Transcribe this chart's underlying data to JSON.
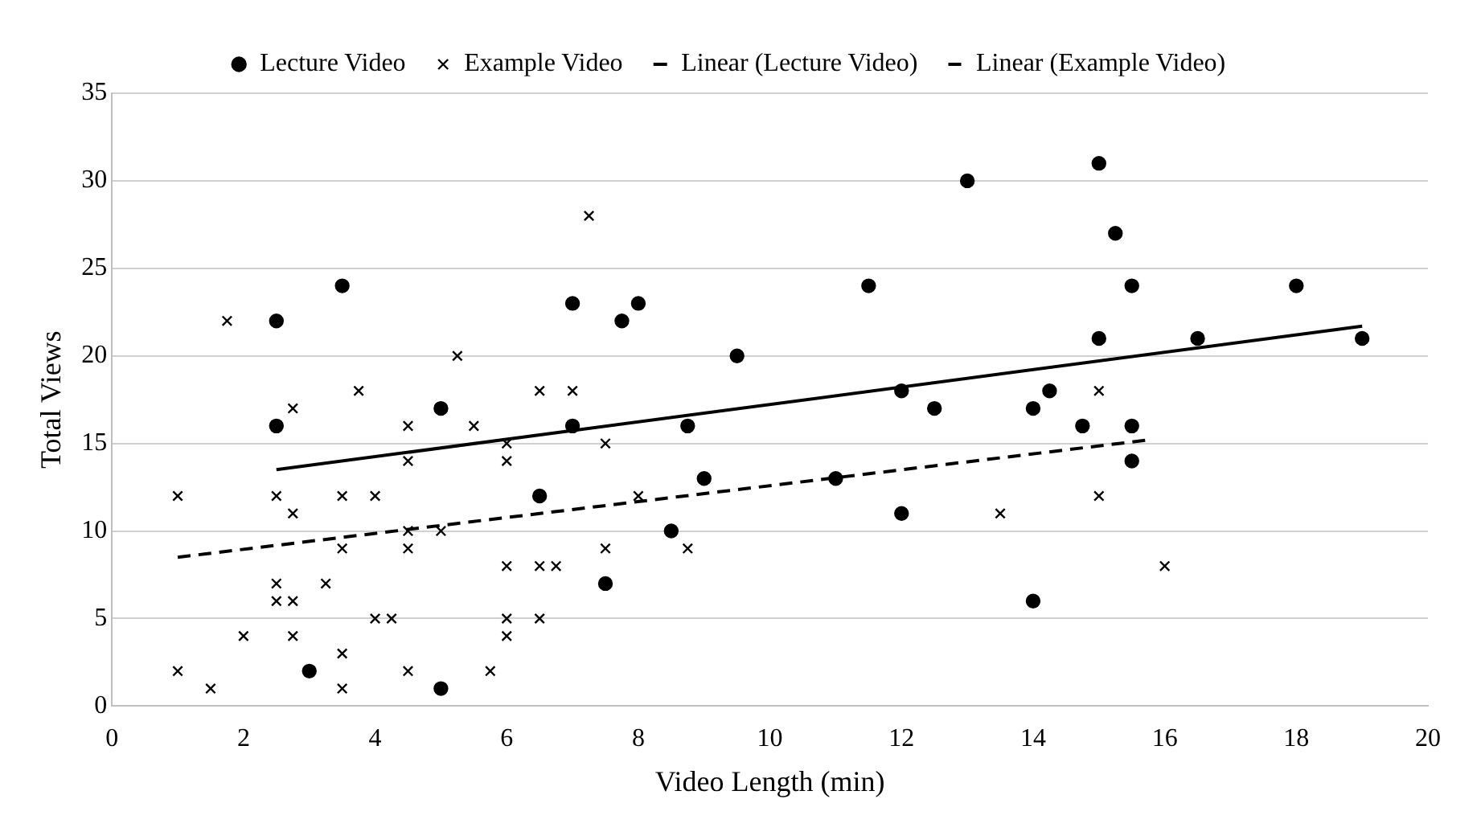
{
  "chart_data": {
    "type": "scatter",
    "xlabel": "Video Length (min)",
    "ylabel": "Total Views",
    "xlim": [
      0,
      20
    ],
    "xticks": [
      0,
      2,
      4,
      6,
      8,
      10,
      12,
      14,
      16,
      18,
      20
    ],
    "ylim": [
      0,
      35
    ],
    "yticks": [
      0,
      5,
      10,
      15,
      20,
      25,
      30,
      35
    ],
    "grid": "y",
    "legend": "top",
    "series": [
      {
        "name": "Lecture Video",
        "marker": "circle",
        "color": "#000000",
        "x": [
          2.5,
          2.5,
          3.5,
          3,
          5,
          5,
          6.5,
          7,
          7,
          7.5,
          7.75,
          8,
          8.5,
          8.75,
          9,
          9.5,
          11,
          11.5,
          12,
          12,
          12.5,
          13,
          14,
          14,
          14.25,
          14.75,
          15,
          15,
          15.25,
          15.5,
          15.5,
          15.5,
          16.5,
          18,
          19
        ],
        "values": [
          22,
          16,
          24,
          2,
          17,
          1,
          12,
          23,
          16,
          7,
          22,
          23,
          10,
          16,
          13,
          20,
          13,
          24,
          18,
          11,
          17,
          30,
          17,
          6,
          18,
          16,
          31,
          21,
          27,
          24,
          16,
          14,
          21,
          24,
          21
        ]
      },
      {
        "name": "Example Video",
        "marker": "cross",
        "color": "#000000",
        "x": [
          1,
          1,
          1.5,
          1.75,
          2,
          2.5,
          2.5,
          2.5,
          2.75,
          2.75,
          2.75,
          2.75,
          3.25,
          3.5,
          3.5,
          3.5,
          3.5,
          3.75,
          4,
          4,
          4.25,
          4.5,
          4.5,
          4.5,
          4.5,
          4.5,
          5,
          5.25,
          5.5,
          5.75,
          6,
          6,
          6,
          6,
          6,
          6.5,
          6.5,
          6.5,
          6.75,
          7,
          7.25,
          7.5,
          7.5,
          8,
          8.75,
          13.5,
          15,
          15,
          16
        ],
        "values": [
          12,
          2,
          1,
          22,
          4,
          12,
          7,
          6,
          17,
          11,
          6,
          4,
          7,
          12,
          9,
          3,
          1,
          18,
          12,
          5,
          5,
          16,
          14,
          10,
          9,
          2,
          10,
          20,
          16,
          2,
          15,
          14,
          8,
          5,
          4,
          18,
          8,
          5,
          8,
          18,
          28,
          15,
          9,
          12,
          9,
          11,
          18,
          12,
          8
        ]
      },
      {
        "name": "Linear (Lecture Video)",
        "type": "line",
        "marker": "none",
        "line_style": "solid",
        "color": "#000000",
        "x": [
          2.5,
          19
        ],
        "values": [
          13.5,
          21.7
        ]
      },
      {
        "name": "Linear (Example Video)",
        "type": "line",
        "marker": "none",
        "line_style": "dashed",
        "color": "#000000",
        "x": [
          1,
          15.75
        ],
        "values": [
          8.5,
          15.2
        ]
      }
    ]
  }
}
